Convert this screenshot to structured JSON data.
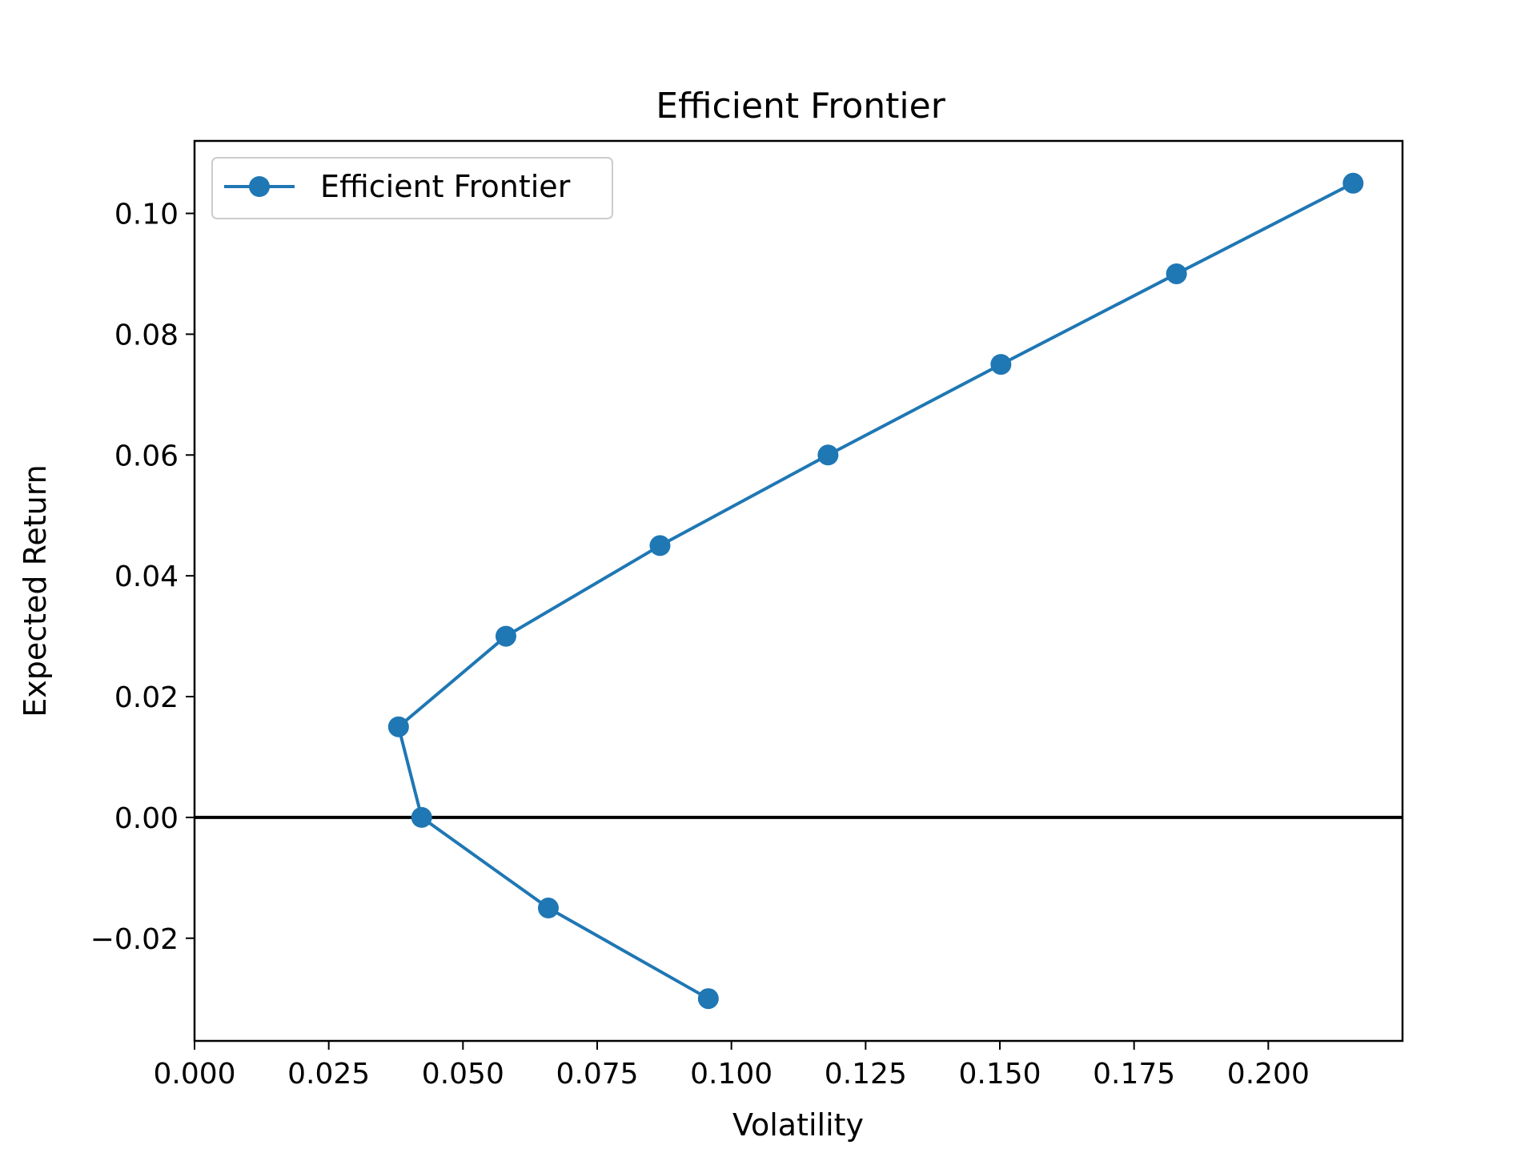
{
  "chart_data": {
    "type": "line",
    "title": "Efficient Frontier",
    "xlabel": "Volatility",
    "ylabel": "Expected Return",
    "xlim": [
      0.0,
      0.225
    ],
    "ylim": [
      -0.037,
      0.112
    ],
    "x_ticks": [
      0.0,
      0.025,
      0.05,
      0.075,
      0.1,
      0.125,
      0.15,
      0.175,
      0.2
    ],
    "x_tick_labels": [
      "0.000",
      "0.025",
      "0.050",
      "0.075",
      "0.100",
      "0.125",
      "0.150",
      "0.175",
      "0.200"
    ],
    "y_ticks": [
      -0.02,
      0.0,
      0.02,
      0.04,
      0.06,
      0.08,
      0.1
    ],
    "y_tick_labels": [
      "−0.02",
      "0.00",
      "0.02",
      "0.04",
      "0.06",
      "0.08",
      "0.10"
    ],
    "grid": false,
    "legend_position": "upper-left",
    "reference_line": {
      "y": 0.0,
      "color": "#000000"
    },
    "series": [
      {
        "name": "Efficient Frontier",
        "color": "#1f77b4",
        "marker": "circle",
        "x": [
          0.0957,
          0.0659,
          0.0423,
          0.038,
          0.058,
          0.0867,
          0.118,
          0.1502,
          0.1829,
          0.2158
        ],
        "y": [
          -0.03,
          -0.015,
          0.0,
          0.015,
          0.03,
          0.045,
          0.06,
          0.075,
          0.09,
          0.105
        ]
      }
    ]
  }
}
